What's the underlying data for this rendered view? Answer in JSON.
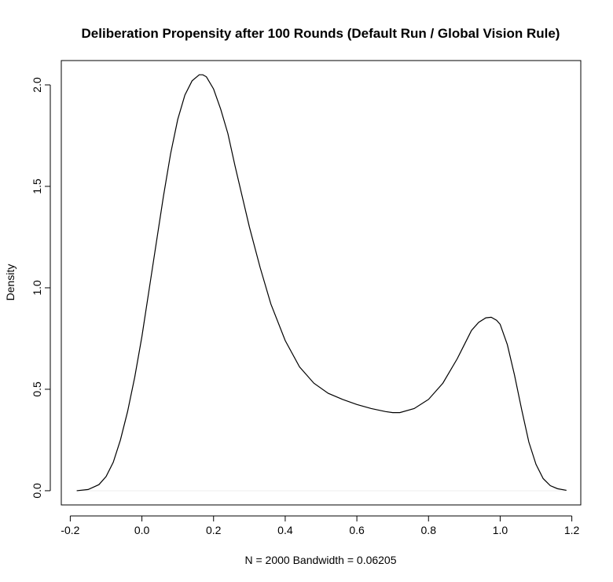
{
  "chart_data": {
    "type": "line",
    "title": "Deliberation Propensity after 100 Rounds (Default Run / Global Vision Rule)",
    "xlabel": "N = 2000   Bandwidth = 0.06205",
    "ylabel": "Density",
    "xlim": [
      -0.225,
      1.225
    ],
    "ylim": [
      -0.07,
      2.12
    ],
    "x_ticks": [
      -0.2,
      0.0,
      0.2,
      0.4,
      0.6,
      0.8,
      1.0,
      1.2
    ],
    "x_tick_labels": [
      "-0.2",
      "0.0",
      "0.2",
      "0.4",
      "0.6",
      "0.8",
      "1.0",
      "1.2"
    ],
    "y_ticks": [
      0.0,
      0.5,
      1.0,
      1.5,
      2.0
    ],
    "y_tick_labels": [
      "0.0",
      "0.5",
      "1.0",
      "1.5",
      "2.0"
    ],
    "baseline": 0,
    "grid": false,
    "series": [
      {
        "x": [
          -0.182,
          -0.15,
          -0.12,
          -0.1,
          -0.08,
          -0.06,
          -0.04,
          -0.02,
          0.0,
          0.02,
          0.04,
          0.06,
          0.08,
          0.1,
          0.12,
          0.14,
          0.16,
          0.17,
          0.18,
          0.2,
          0.22,
          0.24,
          0.26,
          0.28,
          0.3,
          0.33,
          0.36,
          0.4,
          0.44,
          0.48,
          0.52,
          0.56,
          0.6,
          0.64,
          0.68,
          0.7,
          0.72,
          0.76,
          0.8,
          0.84,
          0.88,
          0.9,
          0.92,
          0.94,
          0.96,
          0.975,
          0.99,
          1.0,
          1.02,
          1.04,
          1.06,
          1.08,
          1.1,
          1.12,
          1.14,
          1.16,
          1.185
        ],
        "values": [
          0.0,
          0.006,
          0.03,
          0.07,
          0.14,
          0.25,
          0.39,
          0.56,
          0.76,
          0.99,
          1.22,
          1.45,
          1.66,
          1.83,
          1.95,
          2.02,
          2.05,
          2.05,
          2.04,
          1.98,
          1.88,
          1.76,
          1.6,
          1.45,
          1.3,
          1.1,
          0.92,
          0.74,
          0.61,
          0.53,
          0.48,
          0.45,
          0.425,
          0.405,
          0.39,
          0.385,
          0.385,
          0.405,
          0.45,
          0.53,
          0.65,
          0.72,
          0.79,
          0.83,
          0.852,
          0.855,
          0.84,
          0.82,
          0.72,
          0.57,
          0.4,
          0.24,
          0.13,
          0.06,
          0.025,
          0.01,
          0.002
        ]
      }
    ]
  }
}
